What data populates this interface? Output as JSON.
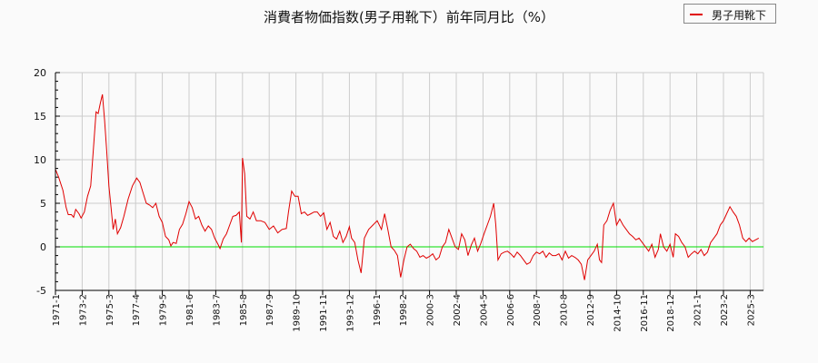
{
  "title": "消費者物価指数(男子用靴下）前年同月比（%）",
  "legend": {
    "label": "男子用靴下",
    "color": "#e00000"
  },
  "chart_data": {
    "type": "line",
    "title": "消費者物価指数(男子用靴下）前年同月比（%）",
    "xlabel": "",
    "ylabel": "",
    "ylim": [
      -5,
      20
    ],
    "yticks": [
      20,
      15,
      10,
      5,
      0,
      -5
    ],
    "grid": true,
    "legend_position": "top-right",
    "zero_line_color": "#00dd00",
    "xtick_labels": [
      "1971-1",
      "1973-2",
      "1975-3",
      "1977-4",
      "1979-5",
      "1981-6",
      "1983-7",
      "1985-8",
      "1987-9",
      "1989-10",
      "1991-11",
      "1993-12",
      "1996-1",
      "1998-2",
      "2000-3",
      "2002-4",
      "2004-5",
      "2006-6",
      "2008-7",
      "2010-8",
      "2012-9",
      "2014-10",
      "2016-11",
      "2018-12",
      "2021-1",
      "2023-2",
      "2025-3"
    ],
    "series": [
      {
        "name": "男子用靴下",
        "color": "#e00000",
        "points": [
          [
            "1971-1",
            8.9
          ],
          [
            "1971-4",
            8.0
          ],
          [
            "1971-8",
            6.5
          ],
          [
            "1971-11",
            4.5
          ],
          [
            "1972-1",
            3.7
          ],
          [
            "1972-4",
            3.7
          ],
          [
            "1972-6",
            3.4
          ],
          [
            "1972-8",
            4.3
          ],
          [
            "1972-11",
            3.8
          ],
          [
            "1973-1",
            3.3
          ],
          [
            "1973-4",
            4.0
          ],
          [
            "1973-7",
            5.8
          ],
          [
            "1973-10",
            7.0
          ],
          [
            "1974-1",
            12.0
          ],
          [
            "1974-3",
            15.5
          ],
          [
            "1974-5",
            15.3
          ],
          [
            "1974-7",
            16.5
          ],
          [
            "1974-9",
            17.5
          ],
          [
            "1974-11",
            14.5
          ],
          [
            "1975-1",
            11.0
          ],
          [
            "1975-3",
            7.0
          ],
          [
            "1975-5",
            4.5
          ],
          [
            "1975-7",
            2.0
          ],
          [
            "1975-9",
            3.2
          ],
          [
            "1975-11",
            1.5
          ],
          [
            "1976-2",
            2.2
          ],
          [
            "1976-5",
            3.5
          ],
          [
            "1976-9",
            5.5
          ],
          [
            "1977-1",
            7.0
          ],
          [
            "1977-5",
            7.9
          ],
          [
            "1977-8",
            7.4
          ],
          [
            "1977-11",
            6.2
          ],
          [
            "1978-2",
            5.0
          ],
          [
            "1978-5",
            4.8
          ],
          [
            "1978-8",
            4.5
          ],
          [
            "1978-11",
            5.0
          ],
          [
            "1979-2",
            3.5
          ],
          [
            "1979-5",
            2.8
          ],
          [
            "1979-8",
            1.2
          ],
          [
            "1979-11",
            0.8
          ],
          [
            "1980-1",
            0.1
          ],
          [
            "1980-3",
            0.5
          ],
          [
            "1980-6",
            0.4
          ],
          [
            "1980-9",
            2.0
          ],
          [
            "1980-12",
            2.6
          ],
          [
            "1981-3",
            3.8
          ],
          [
            "1981-6",
            5.2
          ],
          [
            "1981-9",
            4.5
          ],
          [
            "1981-12",
            3.2
          ],
          [
            "1982-3",
            3.5
          ],
          [
            "1982-6",
            2.5
          ],
          [
            "1982-9",
            1.8
          ],
          [
            "1982-12",
            2.4
          ],
          [
            "1983-3",
            2.0
          ],
          [
            "1983-6",
            1.0
          ],
          [
            "1983-9",
            0.3
          ],
          [
            "1983-11",
            -0.2
          ],
          [
            "1984-2",
            0.9
          ],
          [
            "1984-5",
            1.5
          ],
          [
            "1984-8",
            2.5
          ],
          [
            "1984-11",
            3.5
          ],
          [
            "1985-2",
            3.6
          ],
          [
            "1985-5",
            4.0
          ],
          [
            "1985-7",
            0.5
          ],
          [
            "1985-8",
            10.2
          ],
          [
            "1985-10",
            8.4
          ],
          [
            "1985-12",
            3.5
          ],
          [
            "1986-3",
            3.2
          ],
          [
            "1986-6",
            4.0
          ],
          [
            "1986-9",
            3.0
          ],
          [
            "1987-1",
            3.0
          ],
          [
            "1987-5",
            2.8
          ],
          [
            "1987-9",
            2.0
          ],
          [
            "1988-1",
            2.4
          ],
          [
            "1988-5",
            1.6
          ],
          [
            "1988-9",
            2.0
          ],
          [
            "1989-1",
            2.1
          ],
          [
            "1989-3",
            4.0
          ],
          [
            "1989-6",
            6.4
          ],
          [
            "1989-9",
            5.8
          ],
          [
            "1989-12",
            5.8
          ],
          [
            "1990-3",
            3.8
          ],
          [
            "1990-6",
            4.0
          ],
          [
            "1990-9",
            3.6
          ],
          [
            "1990-12",
            3.8
          ],
          [
            "1991-3",
            4.0
          ],
          [
            "1991-6",
            4.0
          ],
          [
            "1991-9",
            3.5
          ],
          [
            "1991-12",
            3.9
          ],
          [
            "1992-3",
            2.0
          ],
          [
            "1992-6",
            2.8
          ],
          [
            "1992-9",
            1.2
          ],
          [
            "1992-12",
            0.9
          ],
          [
            "1993-3",
            1.8
          ],
          [
            "1993-6",
            0.5
          ],
          [
            "1993-9",
            1.2
          ],
          [
            "1993-12",
            2.3
          ],
          [
            "1994-2",
            1.0
          ],
          [
            "1994-5",
            0.5
          ],
          [
            "1994-8",
            -1.5
          ],
          [
            "1994-11",
            -3.0
          ],
          [
            "1995-2",
            1.0
          ],
          [
            "1995-6",
            2.0
          ],
          [
            "1995-10",
            2.5
          ],
          [
            "1996-2",
            3.0
          ],
          [
            "1996-6",
            2.0
          ],
          [
            "1996-9",
            3.8
          ],
          [
            "1996-12",
            2.0
          ],
          [
            "1997-3",
            0.0
          ],
          [
            "1997-6",
            -0.4
          ],
          [
            "1997-9",
            -1.0
          ],
          [
            "1997-12",
            -3.5
          ],
          [
            "1998-3",
            -1.5
          ],
          [
            "1998-6",
            0.0
          ],
          [
            "1998-9",
            0.3
          ],
          [
            "1998-12",
            -0.2
          ],
          [
            "1999-3",
            -0.5
          ],
          [
            "1999-6",
            -1.2
          ],
          [
            "1999-9",
            -1.0
          ],
          [
            "1999-12",
            -1.3
          ],
          [
            "2000-3",
            -1.1
          ],
          [
            "2000-6",
            -0.8
          ],
          [
            "2000-9",
            -1.5
          ],
          [
            "2000-12",
            -1.2
          ],
          [
            "2001-3",
            0.0
          ],
          [
            "2001-6",
            0.5
          ],
          [
            "2001-9",
            2.0
          ],
          [
            "2001-12",
            1.0
          ],
          [
            "2002-3",
            0.0
          ],
          [
            "2002-6",
            -0.3
          ],
          [
            "2002-9",
            1.5
          ],
          [
            "2002-12",
            0.8
          ],
          [
            "2003-3",
            -1.0
          ],
          [
            "2003-6",
            0.2
          ],
          [
            "2003-9",
            1.0
          ],
          [
            "2003-12",
            -0.5
          ],
          [
            "2004-3",
            0.4
          ],
          [
            "2004-6",
            1.5
          ],
          [
            "2004-9",
            2.5
          ],
          [
            "2004-12",
            3.5
          ],
          [
            "2005-3",
            5.0
          ],
          [
            "2005-5",
            2.5
          ],
          [
            "2005-7",
            -1.5
          ],
          [
            "2005-10",
            -0.8
          ],
          [
            "2006-1",
            -0.6
          ],
          [
            "2006-4",
            -0.5
          ],
          [
            "2006-7",
            -0.8
          ],
          [
            "2006-10",
            -1.2
          ],
          [
            "2007-1",
            -0.6
          ],
          [
            "2007-4",
            -1.0
          ],
          [
            "2007-7",
            -1.5
          ],
          [
            "2007-10",
            -2.0
          ],
          [
            "2008-1",
            -1.8
          ],
          [
            "2008-4",
            -1.0
          ],
          [
            "2008-7",
            -0.6
          ],
          [
            "2008-10",
            -0.8
          ],
          [
            "2009-1",
            -0.5
          ],
          [
            "2009-4",
            -1.2
          ],
          [
            "2009-7",
            -0.7
          ],
          [
            "2009-10",
            -1.0
          ],
          [
            "2010-1",
            -1.0
          ],
          [
            "2010-4",
            -0.8
          ],
          [
            "2010-7",
            -1.5
          ],
          [
            "2010-10",
            -0.5
          ],
          [
            "2011-1",
            -1.3
          ],
          [
            "2011-4",
            -1.0
          ],
          [
            "2011-7",
            -1.2
          ],
          [
            "2011-10",
            -1.5
          ],
          [
            "2012-1",
            -2.0
          ],
          [
            "2012-4",
            -3.8
          ],
          [
            "2012-7",
            -1.5
          ],
          [
            "2012-10",
            -1.0
          ],
          [
            "2013-1",
            -0.5
          ],
          [
            "2013-4",
            0.3
          ],
          [
            "2013-6",
            -1.5
          ],
          [
            "2013-8",
            -1.8
          ],
          [
            "2013-10",
            2.5
          ],
          [
            "2014-1",
            3.0
          ],
          [
            "2014-4",
            4.2
          ],
          [
            "2014-7",
            5.0
          ],
          [
            "2014-10",
            2.5
          ],
          [
            "2015-1",
            3.2
          ],
          [
            "2015-4",
            2.5
          ],
          [
            "2015-7",
            2.0
          ],
          [
            "2015-10",
            1.5
          ],
          [
            "2016-1",
            1.2
          ],
          [
            "2016-4",
            0.8
          ],
          [
            "2016-7",
            1.0
          ],
          [
            "2016-10",
            0.5
          ],
          [
            "2017-1",
            0.0
          ],
          [
            "2017-4",
            -0.5
          ],
          [
            "2017-7",
            0.3
          ],
          [
            "2017-10",
            -1.2
          ],
          [
            "2018-1",
            -0.3
          ],
          [
            "2018-3",
            1.5
          ],
          [
            "2018-6",
            0.0
          ],
          [
            "2018-9",
            -0.5
          ],
          [
            "2018-12",
            0.3
          ],
          [
            "2019-3",
            -1.2
          ],
          [
            "2019-5",
            1.5
          ],
          [
            "2019-8",
            1.2
          ],
          [
            "2019-11",
            0.5
          ],
          [
            "2020-2",
            0.0
          ],
          [
            "2020-5",
            -1.2
          ],
          [
            "2020-8",
            -0.8
          ],
          [
            "2020-11",
            -0.5
          ],
          [
            "2021-2",
            -0.8
          ],
          [
            "2021-5",
            -0.3
          ],
          [
            "2021-8",
            -1.0
          ],
          [
            "2021-11",
            -0.6
          ],
          [
            "2022-2",
            0.5
          ],
          [
            "2022-5",
            1.0
          ],
          [
            "2022-8",
            1.5
          ],
          [
            "2022-11",
            2.5
          ],
          [
            "2023-2",
            3.0
          ],
          [
            "2023-5",
            3.8
          ],
          [
            "2023-8",
            4.6
          ],
          [
            "2023-11",
            4.0
          ],
          [
            "2024-2",
            3.5
          ],
          [
            "2024-5",
            2.5
          ],
          [
            "2024-8",
            1.0
          ],
          [
            "2024-11",
            0.6
          ],
          [
            "2025-2",
            1.0
          ],
          [
            "2025-5",
            0.6
          ],
          [
            "2025-8",
            0.8
          ],
          [
            "2025-11",
            1.0
          ]
        ]
      }
    ]
  }
}
